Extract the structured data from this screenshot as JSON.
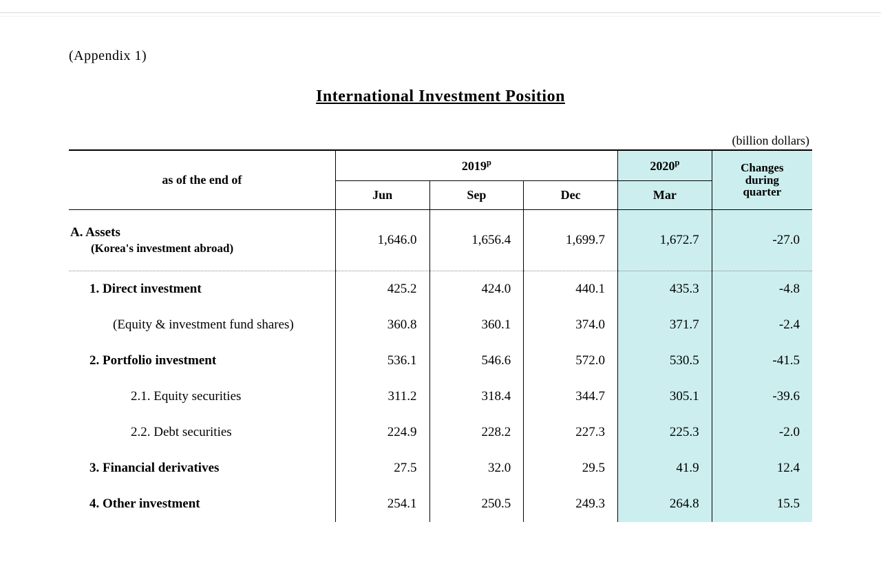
{
  "meta": {
    "appendix_label": "(Appendix  1)",
    "title": "International  Investment  Position",
    "unit": "(billion  dollars)",
    "highlight_color": "#cceeee",
    "text_color": "#000000",
    "background_color": "#ffffff"
  },
  "header": {
    "as_of": "as  of  the  end  of",
    "year_2019": "2019",
    "year_2020": "2020",
    "year_sup": "p",
    "cols": {
      "jun": "Jun",
      "sep": "Sep",
      "dec": "Dec",
      "mar": "Mar"
    },
    "changes_l1": "Changes",
    "changes_l2": "during",
    "changes_l3": "quarter"
  },
  "rows": {
    "assets": {
      "label_main": "A.  Assets",
      "label_sub": "(Korea's  investment  abroad)",
      "jun": "1,646.0",
      "sep": "1,656.4",
      "dec": "1,699.7",
      "mar": "1,672.7",
      "chg": "-27.0"
    },
    "direct": {
      "label": "1.  Direct  investment",
      "jun": "425.2",
      "sep": "424.0",
      "dec": "440.1",
      "mar": "435.3",
      "chg": "-4.8"
    },
    "equity_fund": {
      "label": "(Equity  &  investment  fund  shares)",
      "jun": "360.8",
      "sep": "360.1",
      "dec": "374.0",
      "mar": "371.7",
      "chg": "-2.4"
    },
    "portfolio": {
      "label": "2.  Portfolio  investment",
      "jun": "536.1",
      "sep": "546.6",
      "dec": "572.0",
      "mar": "530.5",
      "chg": "-41.5"
    },
    "equity_sec": {
      "label": "2.1.  Equity  securities",
      "jun": "311.2",
      "sep": "318.4",
      "dec": "344.7",
      "mar": "305.1",
      "chg": "-39.6"
    },
    "debt_sec": {
      "label": "2.2.  Debt  securities",
      "jun": "224.9",
      "sep": "228.2",
      "dec": "227.3",
      "mar": "225.3",
      "chg": "-2.0"
    },
    "fin_deriv": {
      "label": "3.  Financial  derivatives",
      "jun": "27.5",
      "sep": "32.0",
      "dec": "29.5",
      "mar": "41.9",
      "chg": "12.4"
    },
    "other_inv": {
      "label": "4.  Other  investment",
      "jun": "254.1",
      "sep": "250.5",
      "dec": "249.3",
      "mar": "264.8",
      "chg": "15.5"
    }
  }
}
